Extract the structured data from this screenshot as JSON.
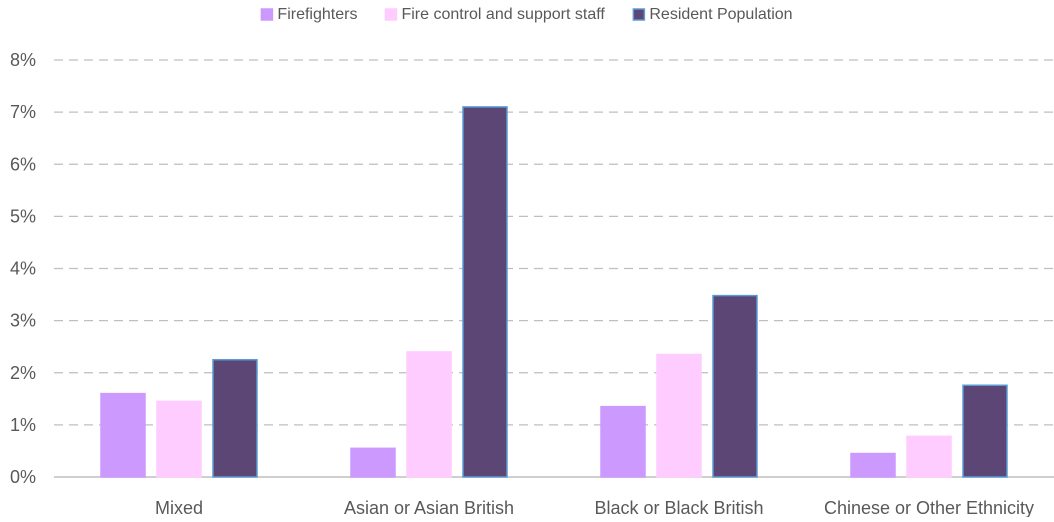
{
  "chart_data": {
    "type": "bar",
    "categories": [
      "Mixed",
      "Asian or Asian British",
      "Black or Black British",
      "Chinese or Other Ethnicity"
    ],
    "series": [
      {
        "name": "Firefighters",
        "values": [
          1.6,
          0.55,
          1.35,
          0.45
        ],
        "color": "#cc99ff",
        "border": "#cc99ff"
      },
      {
        "name": "Fire control and support staff",
        "values": [
          1.45,
          2.4,
          2.35,
          0.78
        ],
        "color": "#ffccff",
        "border": "#ffccff"
      },
      {
        "name": "Resident Population",
        "values": [
          2.25,
          7.1,
          3.48,
          1.76
        ],
        "color": "#5c4675",
        "border": "#5b9bd5"
      }
    ],
    "ylim": [
      0,
      8
    ],
    "yticks": [
      0,
      1,
      2,
      3,
      4,
      5,
      6,
      7,
      8
    ],
    "ytick_labels": [
      "0%",
      "1%",
      "2%",
      "3%",
      "4%",
      "5%",
      "6%",
      "7%",
      "8%"
    ],
    "unit": "%",
    "grid": true,
    "grid_style": "dashed",
    "legend_position": "top-center",
    "title": "",
    "xlabel": "",
    "ylabel": ""
  }
}
